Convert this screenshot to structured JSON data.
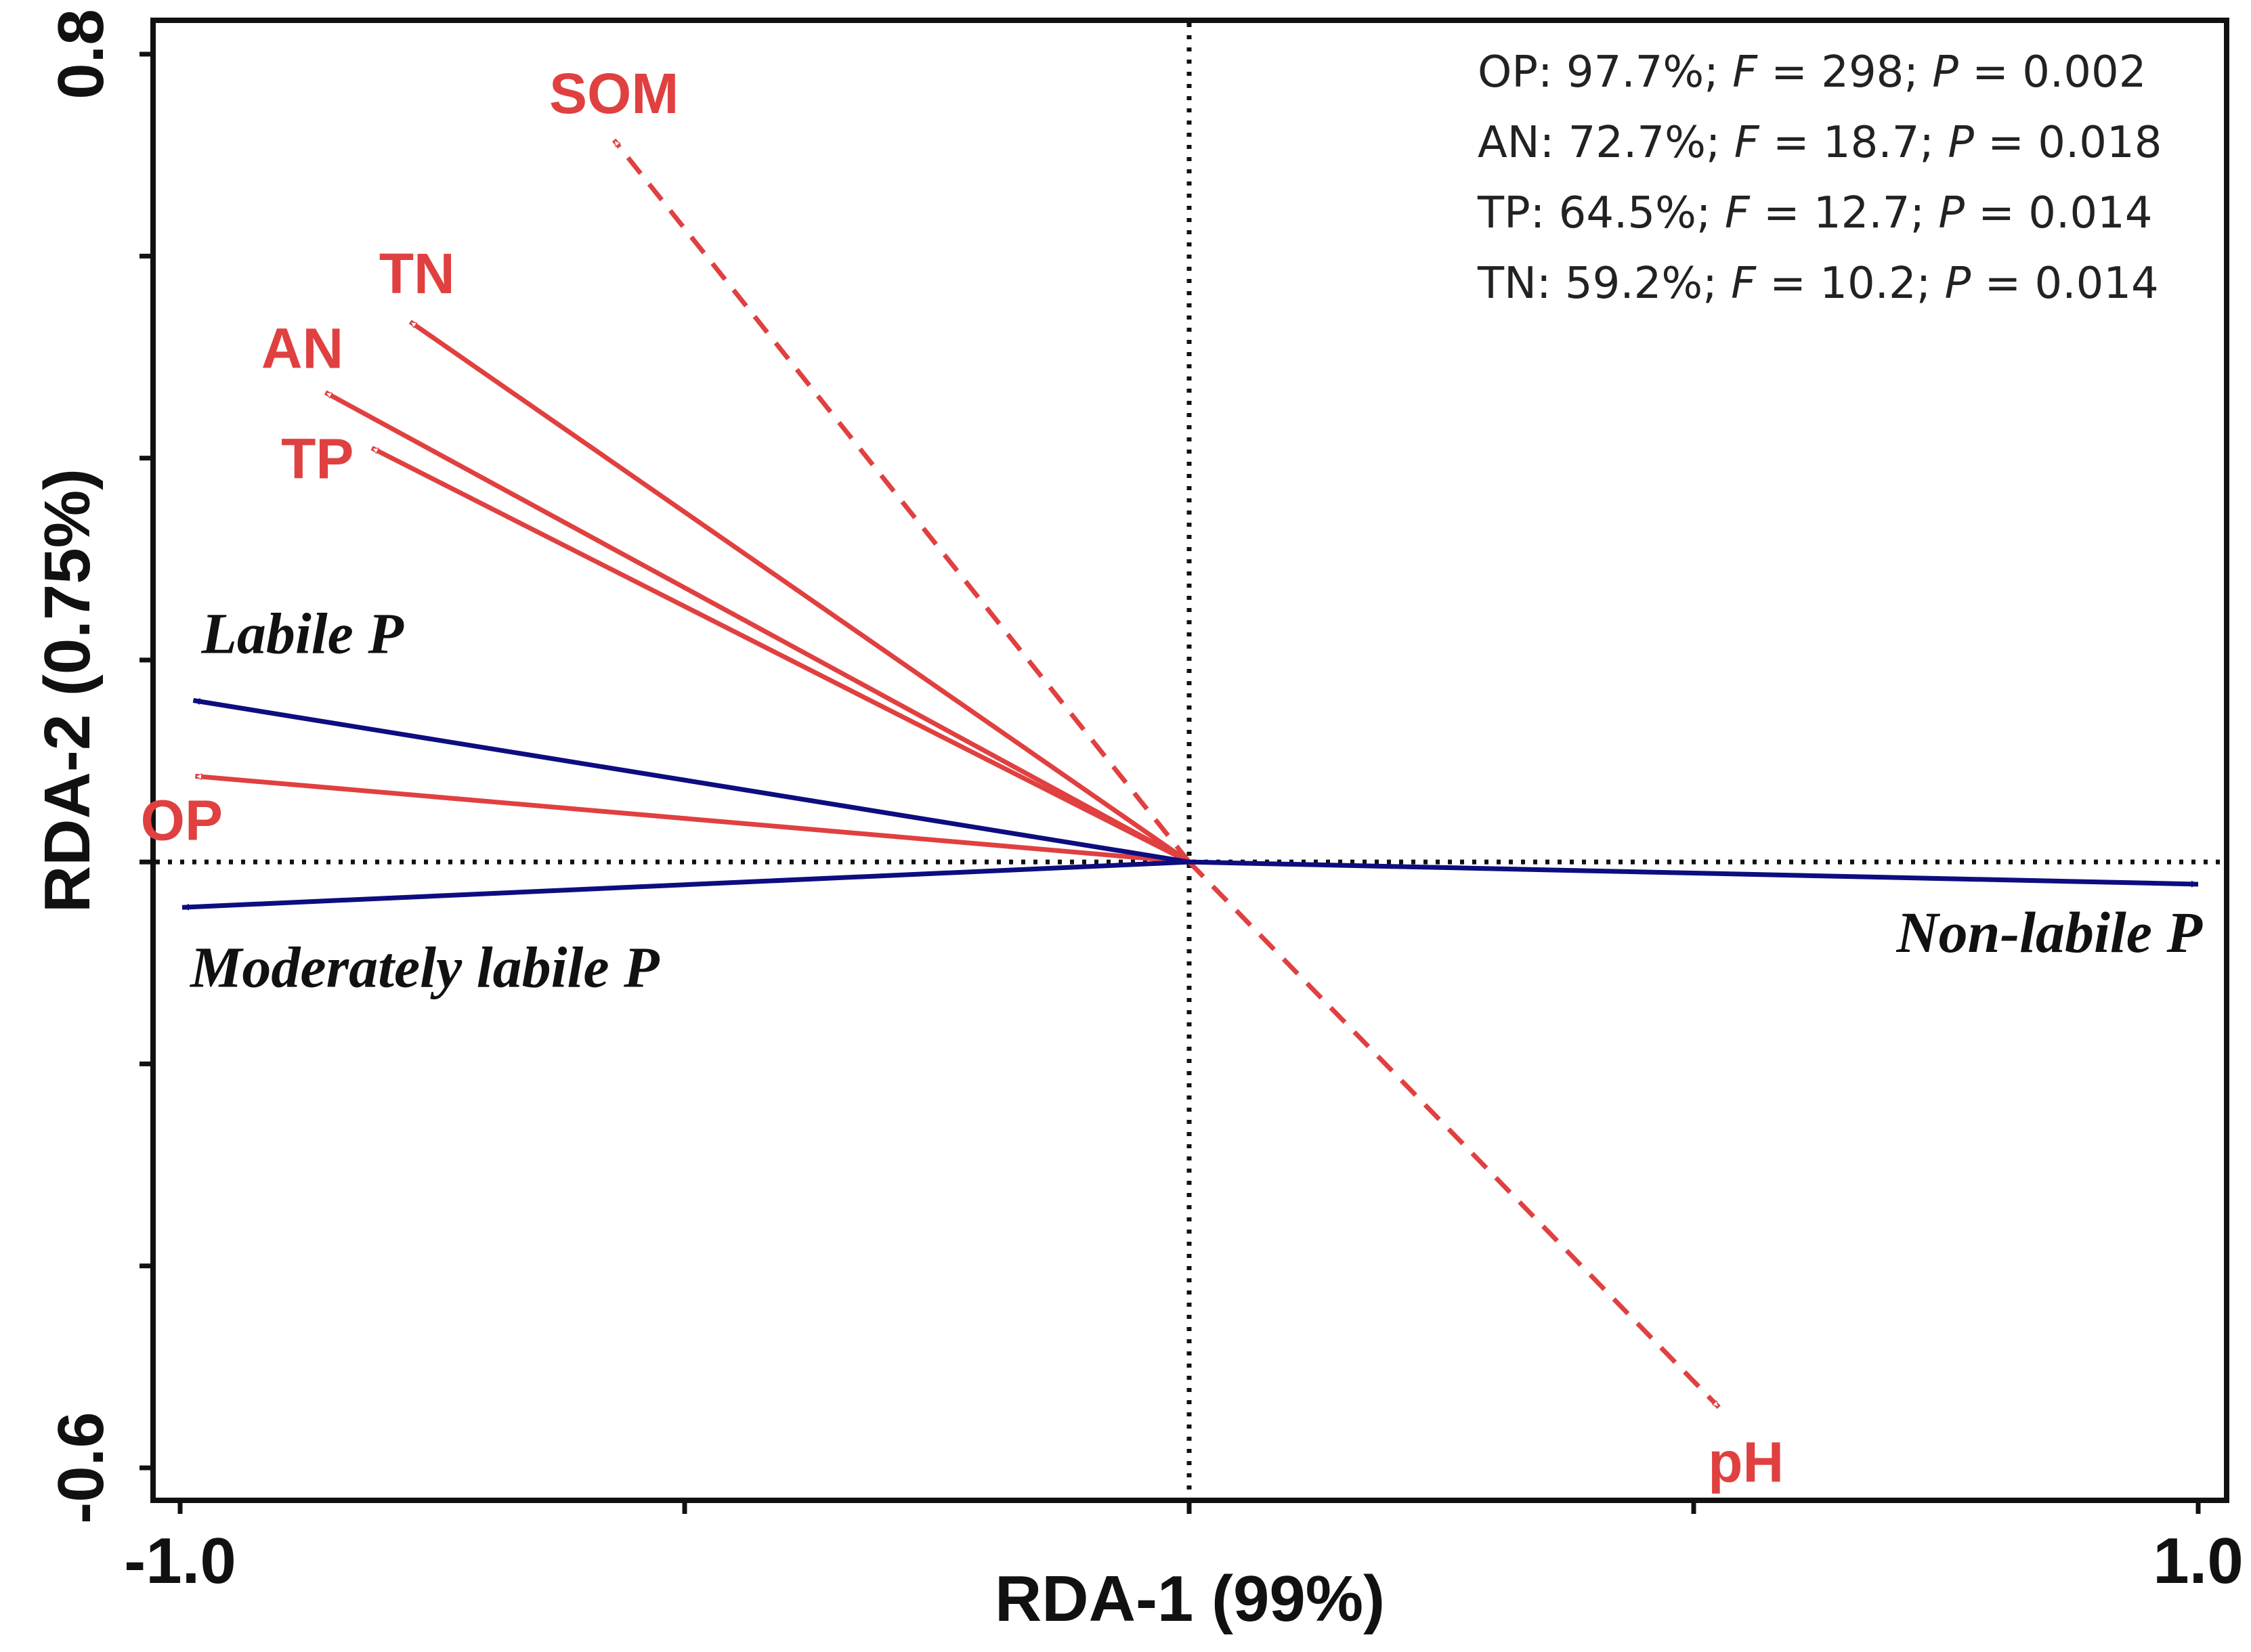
{
  "chart_data": {
    "type": "rda-biplot",
    "xlabel": "RDA-1 (99%)",
    "ylabel": "RDA-2 (0.75%)",
    "xlim": [
      -1.0,
      1.0
    ],
    "ylim": [
      -0.6,
      0.8
    ],
    "x_tick_labels": [
      {
        "value": -1.0,
        "label": "-1.0"
      },
      {
        "value": 1.0,
        "label": "1.0"
      }
    ],
    "y_tick_labels": [
      {
        "value": 0.8,
        "label": "0.8"
      },
      {
        "value": -0.6,
        "label": "-0.6"
      }
    ],
    "x_ticks": [
      -1.0,
      -0.5,
      0.0,
      0.5,
      1.0
    ],
    "y_ticks": [
      0.8,
      0.6,
      0.4,
      0.2,
      0.0,
      -0.2,
      -0.4,
      -0.6
    ],
    "reference_lines": {
      "x": 0.0,
      "y": 0.0
    },
    "response_variables": [
      {
        "name": "Labile P",
        "x": -0.987,
        "y": 0.16
      },
      {
        "name": "Moderately labile P",
        "x": -0.998,
        "y": -0.045
      },
      {
        "name": "Non-labile P",
        "x": 1.0,
        "y": -0.022
      }
    ],
    "explanatory_variables": [
      {
        "name": "SOM",
        "x": -0.57,
        "y": 0.715,
        "style": "dashed"
      },
      {
        "name": "TN",
        "x": -0.772,
        "y": 0.535,
        "style": "solid"
      },
      {
        "name": "AN",
        "x": -0.856,
        "y": 0.465,
        "style": "solid"
      },
      {
        "name": "TP",
        "x": -0.81,
        "y": 0.41,
        "style": "solid"
      },
      {
        "name": "OP",
        "x": -0.985,
        "y": 0.085,
        "style": "solid"
      },
      {
        "name": "pH",
        "x": 0.525,
        "y": -0.54,
        "style": "dashed"
      }
    ],
    "annotations": [
      {
        "var": "OP",
        "pct": "97.7%",
        "F": "298",
        "P": "0.002"
      },
      {
        "var": "AN",
        "pct": "72.7%",
        "F": "18.7",
        "P": "0.018"
      },
      {
        "var": "TP",
        "pct": "64.5%",
        "F": "12.7",
        "P": "0.014"
      },
      {
        "var": "TN",
        "pct": "59.2%",
        "F": "10.2",
        "P": "0.014"
      }
    ],
    "colors": {
      "explanatory": "#e04040",
      "response": "#0d0d80",
      "axis": "#111111"
    }
  }
}
